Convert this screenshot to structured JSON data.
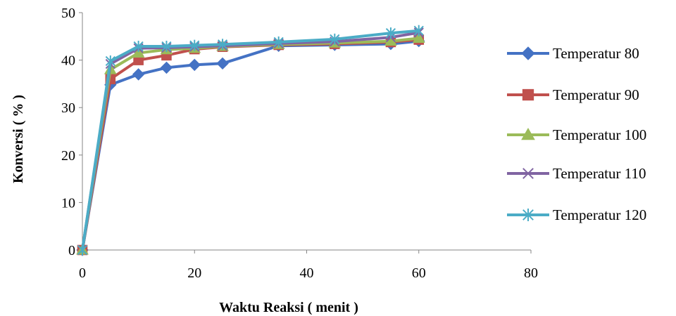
{
  "chart_data": {
    "type": "line",
    "title": "",
    "xlabel": "Waktu Reaksi ( menit )",
    "ylabel": "Konversi ( % )",
    "xlim": [
      0,
      80
    ],
    "ylim": [
      0,
      50
    ],
    "xticks": [
      0,
      20,
      40,
      60,
      80
    ],
    "yticks": [
      0,
      10,
      20,
      30,
      40,
      50
    ],
    "grid": false,
    "legend_position": "right",
    "x": [
      0,
      5,
      10,
      15,
      20,
      25,
      35,
      45,
      55,
      60
    ],
    "series": [
      {
        "name": "Temperatur 80",
        "color": "#4472C4",
        "marker": "diamond",
        "values": [
          0,
          34.8,
          37.0,
          38.4,
          39.0,
          39.3,
          43.0,
          43.2,
          43.4,
          44.0
        ]
      },
      {
        "name": "Temperatur 90",
        "color": "#C0504D",
        "marker": "square",
        "values": [
          0,
          36.0,
          40.0,
          41.0,
          42.3,
          42.8,
          43.2,
          43.4,
          43.8,
          44.3
        ]
      },
      {
        "name": "Temperatur 100",
        "color": "#9BBB59",
        "marker": "triangle",
        "values": [
          0,
          38.0,
          41.5,
          42.2,
          42.5,
          42.9,
          43.3,
          43.6,
          44.0,
          44.6
        ]
      },
      {
        "name": "Temperatur 110",
        "color": "#8064A2",
        "marker": "x",
        "values": [
          0,
          39.2,
          42.5,
          42.6,
          42.8,
          43.0,
          43.5,
          43.9,
          44.8,
          45.8
        ]
      },
      {
        "name": "Temperatur 120",
        "color": "#4BACC6",
        "marker": "asterisk",
        "values": [
          0,
          39.8,
          42.9,
          42.9,
          43.1,
          43.3,
          43.8,
          44.4,
          45.7,
          46.2
        ]
      }
    ]
  }
}
